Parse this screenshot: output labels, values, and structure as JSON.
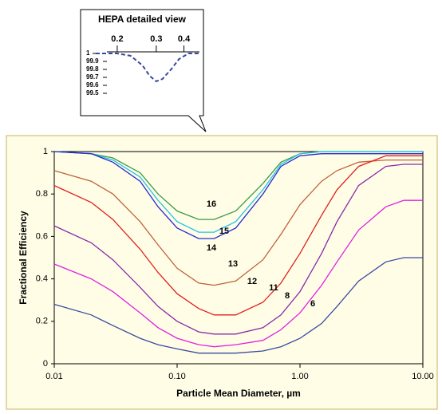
{
  "chart_data": [
    {
      "type": "line",
      "xlabel": "Particle Mean Diameter, µm",
      "ylabel": "Fractional Efficiency",
      "log_x": true,
      "xlim": [
        0.01,
        10
      ],
      "ylim": [
        0,
        1
      ],
      "xticks": [
        0.01,
        {
          "value": 0.1,
          "label": "0.10"
        },
        {
          "value": 1,
          "label": "1.00"
        },
        {
          "value": 10,
          "label": "10.00"
        }
      ],
      "yticks": [
        0,
        0.2,
        0.4,
        0.6,
        0.8,
        1
      ],
      "x": [
        0.01,
        0.02,
        0.03,
        0.05,
        0.07,
        0.1,
        0.15,
        0.2,
        0.3,
        0.5,
        0.7,
        1,
        1.5,
        2,
        3,
        5,
        7,
        10
      ],
      "series": [
        {
          "name": "16",
          "color": "#3a9a4a",
          "values": [
            1,
            0.99,
            0.97,
            0.9,
            0.8,
            0.72,
            0.68,
            0.68,
            0.72,
            0.85,
            0.95,
            0.99,
            1,
            1,
            1,
            1,
            1,
            1
          ]
        },
        {
          "name": "15",
          "color": "#22c3e8",
          "values": [
            1,
            0.99,
            0.96,
            0.88,
            0.77,
            0.67,
            0.62,
            0.62,
            0.67,
            0.82,
            0.94,
            0.99,
            1,
            1,
            1,
            1,
            1,
            1
          ]
        },
        {
          "name": "14",
          "color": "#2a2ad0",
          "values": [
            1,
            0.99,
            0.95,
            0.86,
            0.74,
            0.64,
            0.59,
            0.59,
            0.64,
            0.8,
            0.93,
            0.98,
            0.99,
            0.99,
            0.99,
            0.99,
            0.99,
            0.99
          ]
        },
        {
          "name": "13",
          "color": "#c0623a",
          "values": [
            0.91,
            0.86,
            0.8,
            0.67,
            0.56,
            0.45,
            0.38,
            0.37,
            0.39,
            0.49,
            0.61,
            0.75,
            0.86,
            0.91,
            0.95,
            0.96,
            0.96,
            0.96
          ]
        },
        {
          "name": "12",
          "color": "#e02020",
          "values": [
            0.84,
            0.76,
            0.68,
            0.54,
            0.43,
            0.33,
            0.26,
            0.23,
            0.23,
            0.29,
            0.38,
            0.52,
            0.7,
            0.82,
            0.93,
            0.98,
            0.98,
            0.98
          ]
        },
        {
          "name": "11",
          "color": "#8a2aa8",
          "values": [
            0.65,
            0.57,
            0.49,
            0.36,
            0.27,
            0.2,
            0.15,
            0.14,
            0.14,
            0.17,
            0.23,
            0.34,
            0.52,
            0.67,
            0.84,
            0.93,
            0.94,
            0.94
          ]
        },
        {
          "name": "8",
          "color": "#e020e0",
          "values": [
            0.47,
            0.4,
            0.34,
            0.24,
            0.17,
            0.12,
            0.09,
            0.08,
            0.09,
            0.11,
            0.16,
            0.24,
            0.37,
            0.48,
            0.63,
            0.74,
            0.77,
            0.77
          ]
        },
        {
          "name": "6",
          "color": "#3a4aa0",
          "values": [
            0.28,
            0.23,
            0.18,
            0.12,
            0.09,
            0.07,
            0.05,
            0.05,
            0.05,
            0.06,
            0.08,
            0.12,
            0.19,
            0.27,
            0.39,
            0.48,
            0.5,
            0.5
          ]
        }
      ]
    },
    {
      "type": "line",
      "title": "HEPA detailed view",
      "log_x": true,
      "xlim": [
        0.16,
        0.47
      ],
      "ylim": [
        99.5,
        100
      ],
      "xticks": [
        0.2,
        0.3,
        0.4
      ],
      "yticks": [
        {
          "value": 100,
          "label": "1"
        },
        99.9,
        99.8,
        99.7,
        99.6,
        99.5
      ],
      "x": [
        0.16,
        0.2,
        0.23,
        0.26,
        0.28,
        0.3,
        0.32,
        0.35,
        0.38,
        0.42,
        0.47
      ],
      "series": [
        {
          "color": "#3a4aa0",
          "dashed": true,
          "values": [
            100,
            100,
            99.97,
            99.85,
            99.72,
            99.65,
            99.68,
            99.8,
            99.93,
            100,
            100
          ]
        }
      ]
    }
  ]
}
